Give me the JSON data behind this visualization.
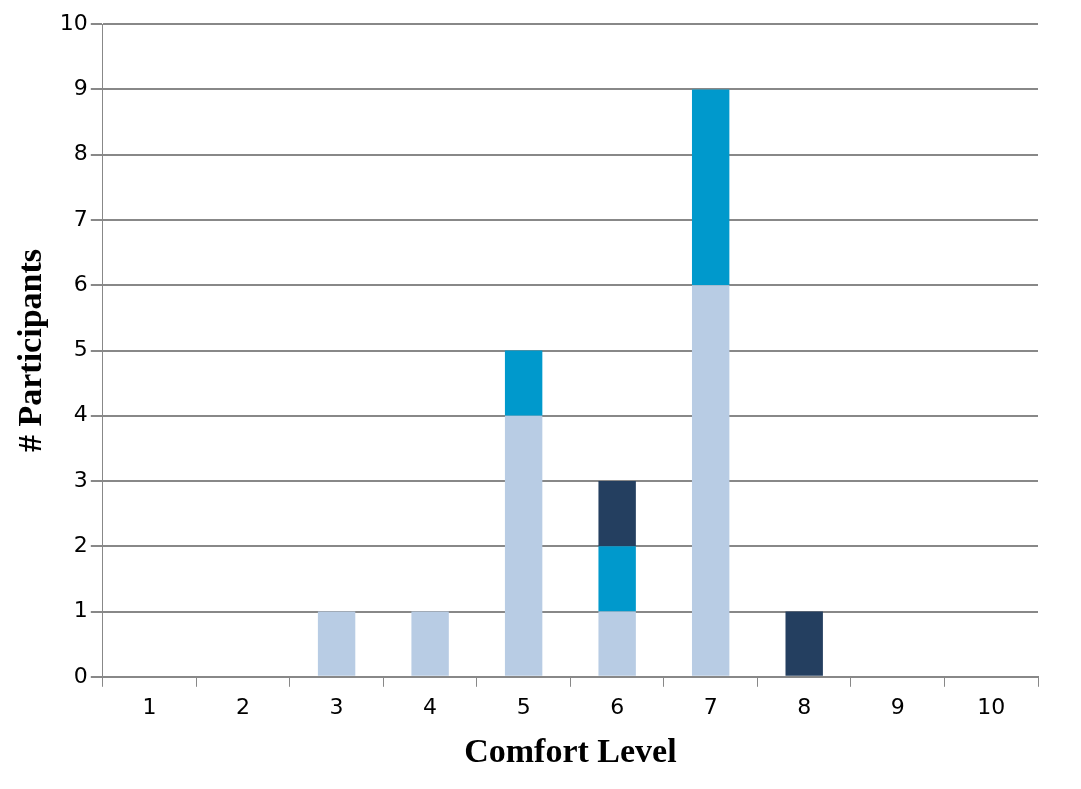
{
  "chart_data": {
    "type": "bar",
    "xlabel": "Comfort Level",
    "ylabel": "# Participants",
    "categories": [
      "1",
      "2",
      "3",
      "4",
      "5",
      "6",
      "7",
      "8",
      "9",
      "10"
    ],
    "stacked": true,
    "series": [
      {
        "color": "#b8cce4",
        "values": [
          0,
          0,
          1,
          1,
          4,
          1,
          6,
          0,
          0,
          0
        ]
      },
      {
        "color": "#0099cc",
        "values": [
          0,
          0,
          0,
          0,
          1,
          1,
          3,
          0,
          0,
          0
        ]
      },
      {
        "color": "#243f60",
        "values": [
          0,
          0,
          0,
          0,
          0,
          1,
          0,
          1,
          0,
          0
        ]
      }
    ],
    "ylim": [
      0,
      10
    ],
    "yticks": [
      0,
      1,
      2,
      3,
      4,
      5,
      6,
      7,
      8,
      9,
      10
    ],
    "grid": "y",
    "legend": false
  }
}
